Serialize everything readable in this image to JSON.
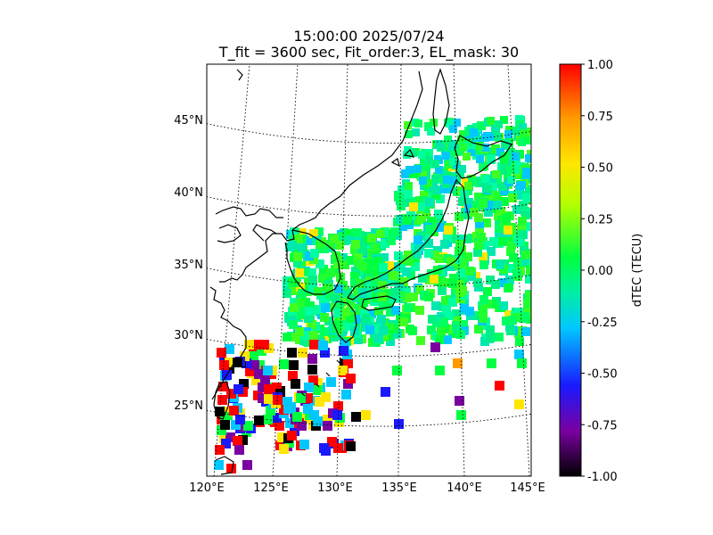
{
  "title": {
    "line1": "15:00:00 2025/07/24",
    "line2": "T_fit = 3600 sec, Fit_order:3, EL_mask: 30"
  },
  "map": {
    "lat_ticks": [
      "45°N",
      "40°N",
      "35°N",
      "30°N",
      "25°N"
    ],
    "lon_ticks": [
      "120°E",
      "125°E",
      "130°E",
      "135°E",
      "140°E",
      "145°E"
    ]
  },
  "colorbar": {
    "label": "dTEC (TECU)",
    "ticks": [
      "1.00",
      "0.75",
      "0.50",
      "0.25",
      "0.00",
      "-0.25",
      "-0.50",
      "-0.75",
      "-1.00"
    ],
    "colors": [
      "#000000",
      "#7a00a0",
      "#1a1aff",
      "#00c8ff",
      "#00f0a0",
      "#00ff40",
      "#b4ff00",
      "#ffe600",
      "#ff9900",
      "#ff0000"
    ]
  }
}
